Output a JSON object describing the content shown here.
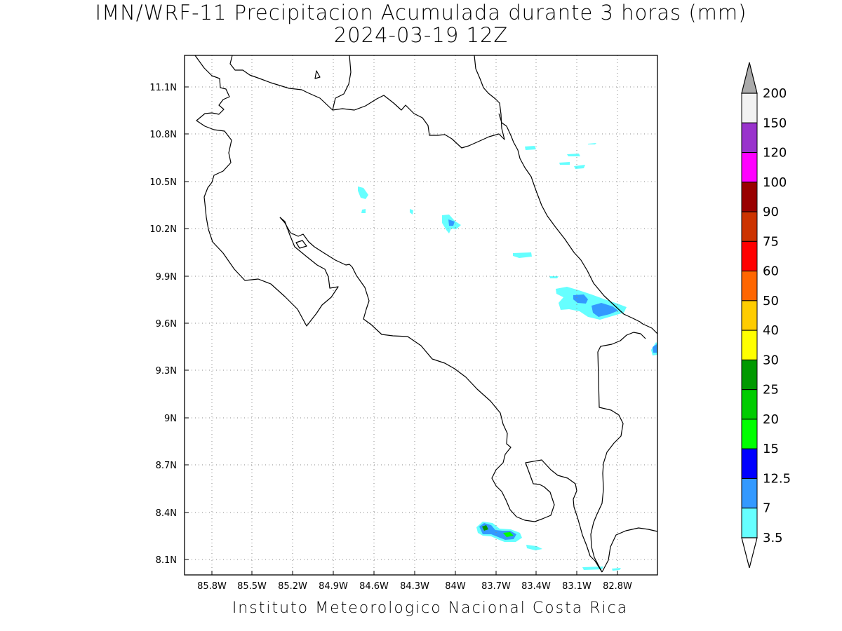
{
  "title": {
    "line1": "IMN/WRF-11 Precipitacion Acumulada durante 3 horas (mm)",
    "line2": "2024-03-19 12Z"
  },
  "footer": "Instituto Meteorologico Nacional Costa Rica",
  "map": {
    "lon_range": [
      -86.0,
      -82.55
    ],
    "lat_range": [
      8.0,
      11.3
    ],
    "lon_ticks": [
      "85.8W",
      "85.5W",
      "85.2W",
      "84.9W",
      "84.6W",
      "84.3W",
      "84W",
      "83.7W",
      "83.4W",
      "83.1W",
      "82.8W"
    ],
    "lat_ticks": [
      "11.1N",
      "10.8N",
      "10.5N",
      "10.2N",
      "9.9N",
      "9.6N",
      "9.3N",
      "9N",
      "8.7N",
      "8.4N",
      "8.1N"
    ],
    "grid": "dotted"
  },
  "colorbar": {
    "labels": [
      "200",
      "150",
      "120",
      "100",
      "90",
      "75",
      "60",
      "50",
      "40",
      "30",
      "25",
      "20",
      "15",
      "12.5",
      "7",
      "3.5"
    ],
    "colors": [
      "#f2f2f2",
      "#9933cc",
      "#ff00ff",
      "#990000",
      "#cc3300",
      "#ff0000",
      "#ff6600",
      "#ffcc00",
      "#ffff00",
      "#009900",
      "#00cc00",
      "#00ff00",
      "#0000ff",
      "#3399ff",
      "#66ffff"
    ],
    "top_arrow_color": "#aaaaaa",
    "bottom_arrow_color": "#ffffff"
  }
}
